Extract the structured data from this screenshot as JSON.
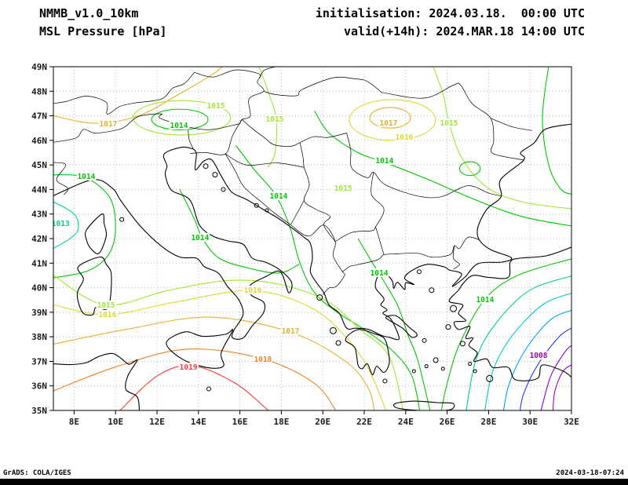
{
  "header": {
    "model": "NMMB_v1.0_10km",
    "field": "MSL Pressure [hPa]",
    "init": "initialisation: 2024.03.18.  00:00 UTC",
    "valid": "valid(+14h): 2024.MAR.18 14:00 UTC"
  },
  "footer": {
    "credit": "GrADS: COLA/IGES",
    "stamp": "2024-03-18-07:24"
  },
  "chart_data": {
    "type": "contour-map",
    "variable": "MSL Pressure",
    "unit": "hPa",
    "contour_interval": 1,
    "lon_range": [
      7,
      32
    ],
    "lat_range": [
      35,
      49
    ],
    "lon_ticks": [
      8,
      10,
      12,
      14,
      16,
      18,
      20,
      22,
      24,
      26,
      28,
      30,
      32
    ],
    "lon_tick_labels": [
      "8E",
      "10E",
      "12E",
      "14E",
      "16E",
      "18E",
      "20E",
      "22E",
      "24E",
      "26E",
      "28E",
      "30E",
      "32E"
    ],
    "lat_ticks": [
      35,
      36,
      37,
      38,
      39,
      40,
      41,
      42,
      43,
      44,
      45,
      46,
      47,
      48,
      49
    ],
    "lat_tick_labels": [
      "35N",
      "36N",
      "37N",
      "38N",
      "39N",
      "40N",
      "41N",
      "42N",
      "43N",
      "44N",
      "45N",
      "46N",
      "47N",
      "48N",
      "49N"
    ],
    "levels": {
      "1008": "#a000c8",
      "1009": "#8200dc",
      "1010": "#1e3cff",
      "1011": "#00a0ff",
      "1012": "#00c8c8",
      "1013": "#00d28c",
      "1014": "#00c800",
      "1015": "#a0e632",
      "1016": "#ddd82e",
      "1017": "#e6af2d",
      "1018": "#f08228",
      "1019": "#fa3c3c"
    },
    "grid_color": "#b8b8b8",
    "coast_color": "#000000",
    "contours": [
      {
        "level": 1017,
        "points": [
          [
            7,
            47.0
          ],
          [
            9.0,
            46.7
          ],
          [
            11.1,
            47.0
          ],
          [
            13.1,
            47.9
          ],
          [
            14.7,
            48.7
          ],
          [
            15.2,
            49.05
          ]
        ]
      },
      {
        "level": 1015,
        "points": [
          [
            16.9,
            49.05
          ],
          [
            17.4,
            47.9
          ],
          [
            17.75,
            46.85
          ],
          [
            17.7,
            45.5
          ],
          [
            17.35,
            44.9
          ]
        ]
      },
      {
        "level": 1013,
        "points": [
          [
            7,
            43.5
          ],
          [
            8.0,
            43.0
          ],
          [
            8.2,
            42.4
          ],
          [
            7.8,
            42.0
          ],
          [
            7,
            41.6
          ]
        ]
      },
      {
        "level": 1014,
        "points": [
          [
            7,
            44.6
          ],
          [
            8.5,
            44.5
          ],
          [
            9.7,
            43.7
          ],
          [
            10.0,
            42.5
          ],
          [
            9.7,
            41.4
          ],
          [
            8.7,
            40.7
          ],
          [
            7,
            40.4
          ]
        ]
      },
      {
        "level": 1014,
        "points": [
          [
            13.1,
            44.0
          ],
          [
            13.8,
            42.8
          ],
          [
            14.2,
            42.0
          ],
          [
            15.0,
            41.2
          ],
          [
            16.4,
            40.8
          ],
          [
            17.9,
            40.6
          ],
          [
            18.85,
            40.95
          ]
        ]
      },
      {
        "level": 1014,
        "points": [
          [
            15.8,
            45.8
          ],
          [
            16.7,
            44.8
          ],
          [
            17.7,
            43.8
          ],
          [
            18.4,
            42.5
          ],
          [
            18.9,
            41.0
          ],
          [
            19.6,
            39.8
          ],
          [
            20.7,
            39.0
          ],
          [
            22.0,
            38.3
          ],
          [
            23.4,
            37.4
          ],
          [
            24.3,
            36.4
          ],
          [
            24.7,
            34.9
          ]
        ]
      },
      {
        "level": 1014,
        "points": [
          [
            21.7,
            42.0
          ],
          [
            22.4,
            41.0
          ],
          [
            22.7,
            40.6
          ],
          [
            23.6,
            39.3
          ],
          [
            24.1,
            38.1
          ],
          [
            24.6,
            37.0
          ],
          [
            25.2,
            34.9
          ]
        ]
      },
      {
        "level": 1014,
        "points": [
          [
            19.6,
            47.2
          ],
          [
            20.3,
            46.3
          ],
          [
            21.7,
            45.5
          ],
          [
            23.0,
            45.1
          ],
          [
            25.1,
            44.4
          ],
          [
            27.3,
            43.6
          ],
          [
            29.6,
            42.9
          ],
          [
            32.1,
            42.5
          ]
        ]
      },
      {
        "level": 1015,
        "points": [
          [
            25.3,
            49.05
          ],
          [
            25.8,
            47.9
          ],
          [
            26.1,
            46.7
          ],
          [
            26.7,
            45.3
          ],
          [
            27.9,
            44.1
          ],
          [
            29.6,
            43.5
          ],
          [
            32.1,
            43.2
          ]
        ]
      },
      {
        "level": 1014,
        "points": [
          [
            30.9,
            49.05
          ],
          [
            30.6,
            46.9
          ],
          [
            30.9,
            45.0
          ],
          [
            31.5,
            44.0
          ],
          [
            32.1,
            43.8
          ]
        ]
      },
      {
        "level": 1019,
        "points": [
          [
            10.1,
            34.9
          ],
          [
            12.0,
            36.4
          ],
          [
            13.7,
            36.82
          ],
          [
            15.8,
            36.1
          ],
          [
            17.5,
            34.9
          ]
        ]
      },
      {
        "level": 1018,
        "points": [
          [
            7,
            35.8
          ],
          [
            10.1,
            36.8
          ],
          [
            13.5,
            37.5
          ],
          [
            17.1,
            37.1
          ],
          [
            19.6,
            36.1
          ],
          [
            20.7,
            34.9
          ]
        ]
      },
      {
        "level": 1017,
        "points": [
          [
            7,
            37.7
          ],
          [
            10.5,
            38.3
          ],
          [
            14.5,
            38.8
          ],
          [
            18.4,
            38.2
          ],
          [
            21.1,
            37.0
          ],
          [
            22.2,
            35.9
          ],
          [
            22.5,
            34.9
          ]
        ]
      },
      {
        "level": 1016,
        "points": [
          [
            7,
            39.3
          ],
          [
            9.6,
            38.9
          ],
          [
            12.8,
            39.4
          ],
          [
            16.6,
            39.88
          ],
          [
            19.4,
            39.2
          ],
          [
            21.1,
            38.0
          ],
          [
            22.2,
            36.7
          ],
          [
            23.1,
            34.9
          ]
        ]
      },
      {
        "level": 1015,
        "points": [
          [
            7,
            40.5
          ],
          [
            9.5,
            39.3
          ],
          [
            12.6,
            39.9
          ],
          [
            15.6,
            40.3
          ],
          [
            18.1,
            40.1
          ],
          [
            20.3,
            39.4
          ],
          [
            21.8,
            38.3
          ],
          [
            23.2,
            37.2
          ],
          [
            23.9,
            34.9
          ]
        ]
      },
      {
        "level": 1014,
        "points": [
          [
            32.1,
            41.2
          ],
          [
            29.4,
            40.5
          ],
          [
            27.8,
            39.5
          ],
          [
            26.6,
            37.7
          ],
          [
            26.0,
            36.1
          ],
          [
            25.7,
            34.9
          ]
        ]
      },
      {
        "level": 1013,
        "points": [
          [
            32.1,
            40.5
          ],
          [
            30.0,
            39.9
          ],
          [
            28.4,
            38.6
          ],
          [
            27.4,
            37.1
          ],
          [
            26.9,
            34.9
          ]
        ]
      },
      {
        "level": 1012,
        "points": [
          [
            32.1,
            39.8
          ],
          [
            30.6,
            39.3
          ],
          [
            29.1,
            38.0
          ],
          [
            28.2,
            36.6
          ],
          [
            27.8,
            34.9
          ]
        ]
      },
      {
        "level": 1011,
        "points": [
          [
            32.1,
            39.1
          ],
          [
            31.0,
            38.7
          ],
          [
            29.8,
            37.5
          ],
          [
            29.0,
            36.1
          ],
          [
            28.7,
            34.9
          ]
        ]
      },
      {
        "level": 1010,
        "points": [
          [
            32.1,
            38.4
          ],
          [
            31.4,
            38.0
          ],
          [
            30.4,
            36.9
          ],
          [
            29.7,
            35.7
          ],
          [
            29.5,
            34.9
          ]
        ]
      },
      {
        "level": 1009,
        "points": [
          [
            32.1,
            37.7
          ],
          [
            31.7,
            37.4
          ],
          [
            31.0,
            36.4
          ],
          [
            30.5,
            34.9
          ]
        ]
      },
      {
        "level": 1008,
        "points": [
          [
            32.1,
            36.9
          ],
          [
            31.6,
            36.6
          ],
          [
            31.2,
            35.8
          ],
          [
            31.1,
            34.9
          ]
        ]
      }
    ],
    "closed_cells": [
      {
        "level": 1015,
        "center": [
          13.2,
          46.92
        ],
        "rx_deg": 2.35,
        "ry_deg": 0.7
      },
      {
        "level": 1014,
        "center": [
          13.1,
          46.85
        ],
        "rx_deg": 1.36,
        "ry_deg": 0.42
      },
      {
        "level": 1017,
        "center": [
          23.25,
          46.92
        ],
        "rx_deg": 0.98,
        "ry_deg": 0.42
      },
      {
        "level": 1016,
        "center": [
          23.36,
          46.83
        ],
        "rx_deg": 2.08,
        "ry_deg": 0.83
      },
      {
        "level": 1014,
        "center": [
          27.1,
          44.85
        ],
        "rx_deg": 0.5,
        "ry_deg": 0.28
      }
    ],
    "labels": [
      {
        "level": 1015,
        "lon": 14.84,
        "lat": 47.4
      },
      {
        "level": 1017,
        "lon": 9.65,
        "lat": 46.67
      },
      {
        "level": 1014,
        "lon": 13.06,
        "lat": 46.6
      },
      {
        "level": 1015,
        "lon": 17.68,
        "lat": 46.86
      },
      {
        "level": 1017,
        "lon": 23.17,
        "lat": 46.7
      },
      {
        "level": 1015,
        "lon": 26.09,
        "lat": 46.7
      },
      {
        "level": 1016,
        "lon": 23.93,
        "lat": 46.12
      },
      {
        "level": 1014,
        "lon": 22.98,
        "lat": 45.16
      },
      {
        "level": 1014,
        "lon": 8.59,
        "lat": 44.52
      },
      {
        "level": 1015,
        "lon": 20.98,
        "lat": 44.05
      },
      {
        "level": 1014,
        "lon": 17.87,
        "lat": 43.73
      },
      {
        "level": 1013,
        "lon": 7.35,
        "lat": 42.61
      },
      {
        "level": 1014,
        "lon": 14.08,
        "lat": 42.03
      },
      {
        "level": 1014,
        "lon": 22.72,
        "lat": 40.59
      },
      {
        "level": 1016,
        "lon": 16.62,
        "lat": 39.89
      },
      {
        "level": 1014,
        "lon": 27.83,
        "lat": 39.51
      },
      {
        "level": 1015,
        "lon": 9.54,
        "lat": 39.28
      },
      {
        "level": 1016,
        "lon": 9.61,
        "lat": 38.9
      },
      {
        "level": 1017,
        "lon": 18.44,
        "lat": 38.23
      },
      {
        "level": 1018,
        "lon": 17.11,
        "lat": 37.08
      },
      {
        "level": 1019,
        "lon": 13.52,
        "lat": 36.76
      },
      {
        "level": 1008,
        "lon": 30.41,
        "lat": 37.24
      }
    ]
  }
}
